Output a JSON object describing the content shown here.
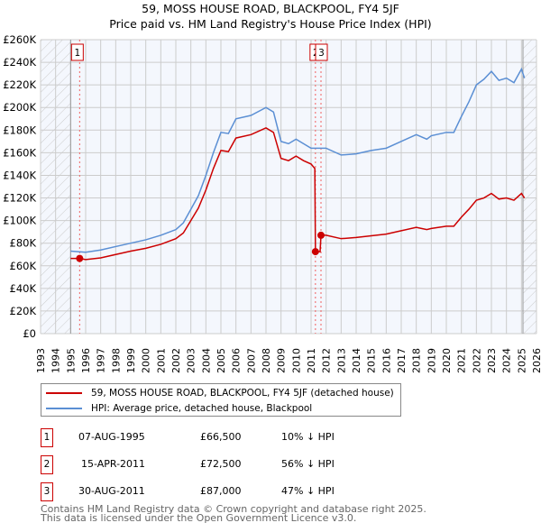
{
  "title": "59, MOSS HOUSE ROAD, BLACKPOOL, FY4 5JF",
  "subtitle": "Price paid vs. HM Land Registry's House Price Index (HPI)",
  "chart_data": {
    "type": "line",
    "title": "59, MOSS HOUSE ROAD, BLACKPOOL, FY4 5JF",
    "subtitle": "Price paid vs. HM Land Registry's House Price Index (HPI)",
    "xlim": [
      1993,
      2026
    ],
    "ylim": [
      0,
      260000
    ],
    "y_ticks": [
      "£0",
      "£20K",
      "£40K",
      "£60K",
      "£80K",
      "£100K",
      "£120K",
      "£140K",
      "£160K",
      "£180K",
      "£200K",
      "£220K",
      "£240K",
      "£260K"
    ],
    "x_ticks": [
      "1993",
      "1994",
      "1995",
      "1996",
      "1997",
      "1998",
      "1999",
      "2000",
      "2001",
      "2002",
      "2003",
      "2004",
      "2005",
      "2006",
      "2007",
      "2008",
      "2009",
      "2010",
      "2011",
      "2012",
      "2013",
      "2014",
      "2015",
      "2016",
      "2017",
      "2018",
      "2019",
      "2020",
      "2021",
      "2022",
      "2023",
      "2024",
      "2025",
      "2026"
    ],
    "grid": true,
    "hatched_ranges": [
      [
        1993,
        1995.0
      ],
      [
        2025.1,
        2026
      ]
    ],
    "series": [
      {
        "name": "59, MOSS HOUSE ROAD, BLACKPOOL, FY4 5JF (detached house)",
        "color": "#cc0000",
        "x": [
          1995,
          1995.6,
          1996,
          1997,
          1998,
          1999,
          2000,
          2001,
          2002,
          2002.5,
          2003,
          2003.5,
          2004,
          2004.5,
          2005,
          2005.5,
          2006,
          2007,
          2008,
          2008.5,
          2009,
          2009.5,
          2010,
          2010.5,
          2011,
          2011.25,
          2011.29,
          2011.6,
          2011.66,
          2012,
          2013,
          2014,
          2015,
          2016,
          2017,
          2018,
          2018.7,
          2019,
          2020,
          2020.5,
          2021,
          2021.5,
          2022,
          2022.5,
          2023,
          2023.5,
          2024,
          2024.5,
          2025,
          2025.2
        ],
        "y": [
          66500,
          66500,
          65500,
          67000,
          70000,
          73000,
          75500,
          79000,
          84000,
          89000,
          100000,
          111000,
          127000,
          146000,
          162000,
          161000,
          173000,
          176000,
          182000,
          178000,
          155000,
          153000,
          157000,
          153000,
          150000,
          146000,
          72500,
          72500,
          87000,
          87000,
          84000,
          85000,
          86500,
          88000,
          91000,
          94000,
          92000,
          93000,
          95000,
          95000,
          103000,
          110000,
          118000,
          120000,
          124000,
          119000,
          120000,
          118000,
          124000,
          120000
        ]
      },
      {
        "name": "HPI: Average price, detached house, Blackpool",
        "color": "#5b8fd4",
        "x": [
          1995,
          1996,
          1997,
          1998,
          1999,
          2000,
          2001,
          2002,
          2002.5,
          2003,
          2003.5,
          2004,
          2004.5,
          2005,
          2005.5,
          2006,
          2007,
          2008,
          2008.5,
          2009,
          2009.5,
          2010,
          2010.5,
          2011,
          2012,
          2013,
          2014,
          2015,
          2016,
          2017,
          2018,
          2018.7,
          2019,
          2020,
          2020.5,
          2021,
          2021.5,
          2022,
          2022.5,
          2023,
          2023.5,
          2024,
          2024.5,
          2025,
          2025.2
        ],
        "y": [
          73000,
          72000,
          74000,
          77000,
          80000,
          83000,
          87000,
          92000,
          98000,
          110000,
          122000,
          140000,
          160000,
          178000,
          177000,
          190000,
          193000,
          200000,
          196000,
          170000,
          168000,
          172000,
          168000,
          164000,
          164000,
          158000,
          159000,
          162000,
          164000,
          170000,
          176000,
          172000,
          175000,
          178000,
          178000,
          192000,
          205000,
          220000,
          225000,
          232000,
          224000,
          226000,
          222000,
          234000,
          226000
        ]
      }
    ],
    "transactions": [
      {
        "id": "1",
        "x": 1995.6,
        "date": "07-AUG-1995",
        "price": "£66,500",
        "value": 66500,
        "hpi": "10% ↓ HPI"
      },
      {
        "id": "2",
        "x": 2011.29,
        "date": "15-APR-2011",
        "price": "£72,500",
        "value": 72500,
        "hpi": "56% ↓ HPI"
      },
      {
        "id": "3",
        "x": 2011.66,
        "date": "30-AUG-2011",
        "price": "£87,000",
        "value": 87000,
        "hpi": "47% ↓ HPI"
      }
    ],
    "legend": "below"
  },
  "footer": {
    "line1": "Contains HM Land Registry data © Crown copyright and database right 2025.",
    "line2": "This data is licensed under the Open Government Licence v3.0."
  }
}
